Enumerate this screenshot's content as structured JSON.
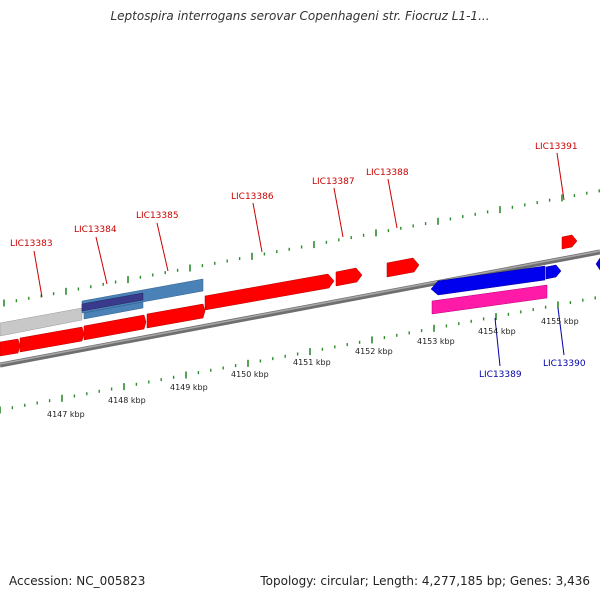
{
  "title": "Leptospira interrogans serovar Copenhageni str. Fiocruz L1-1...",
  "footer": {
    "accession": "Accession: NC_005823",
    "genome_info": "Topology: circular; Length: 4,277,185 bp; Genes: 3,436"
  },
  "colors": {
    "backbone": "#8a8a8a",
    "forward_label": "#cc0000",
    "reverse_label": "#0000aa",
    "tick": "#2e8b2e",
    "forward_gene": "#ff0000",
    "reverse_gene": "#0000ee",
    "pink_gene": "#ff1aa8",
    "steelblue_gene": "#4a82b8",
    "navy_gene": "#3a3a8c",
    "grey_gene": "#c8c8c8"
  },
  "forward_gene_labels": [
    "LIC13383",
    "LIC13384",
    "LIC13385",
    "LIC13386",
    "LIC13387",
    "LIC13388",
    "LIC13391"
  ],
  "reverse_gene_labels": [
    "LIC13389",
    "LIC13390"
  ],
  "kbp_labels": [
    "4147 kbp",
    "4148 kbp",
    "4149 kbp",
    "4150 kbp",
    "4151 kbp",
    "4152 kbp",
    "4153 kbp",
    "4154 kbp",
    "4155 kbp"
  ]
}
